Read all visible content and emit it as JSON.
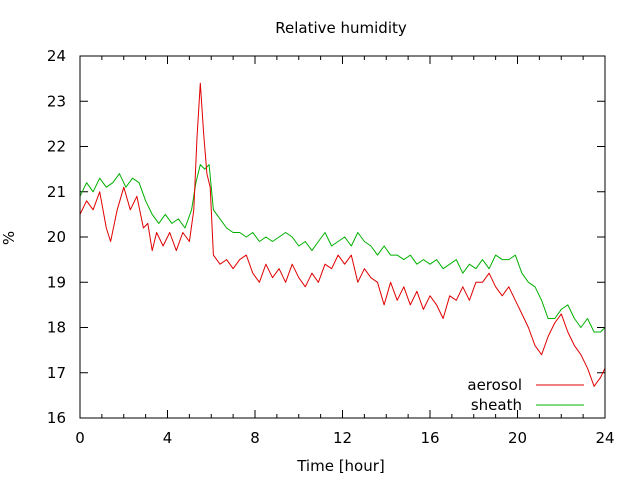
{
  "chart_data": {
    "type": "line",
    "title": "Relative humidity",
    "xlabel": "Time [hour]",
    "ylabel": "%",
    "xlim": [
      0,
      24
    ],
    "ylim": [
      16,
      24
    ],
    "xticks": [
      0,
      4,
      8,
      12,
      16,
      20,
      24
    ],
    "yticks": [
      16,
      17,
      18,
      19,
      20,
      21,
      22,
      23,
      24
    ],
    "grid": false,
    "legend_position": "bottom-right",
    "series": [
      {
        "name": "aerosol",
        "color": "#e00000",
        "points": [
          [
            0.0,
            20.5
          ],
          [
            0.3,
            20.8
          ],
          [
            0.6,
            20.6
          ],
          [
            0.9,
            21.0
          ],
          [
            1.2,
            20.2
          ],
          [
            1.4,
            19.9
          ],
          [
            1.7,
            20.6
          ],
          [
            2.0,
            21.1
          ],
          [
            2.3,
            20.6
          ],
          [
            2.6,
            20.9
          ],
          [
            2.9,
            20.2
          ],
          [
            3.1,
            20.3
          ],
          [
            3.3,
            19.7
          ],
          [
            3.5,
            20.1
          ],
          [
            3.8,
            19.8
          ],
          [
            4.1,
            20.1
          ],
          [
            4.4,
            19.7
          ],
          [
            4.7,
            20.1
          ],
          [
            5.0,
            19.9
          ],
          [
            5.2,
            20.6
          ],
          [
            5.35,
            22.2
          ],
          [
            5.5,
            23.4
          ],
          [
            5.65,
            22.3
          ],
          [
            5.8,
            21.4
          ],
          [
            5.95,
            21.1
          ],
          [
            6.1,
            19.6
          ],
          [
            6.4,
            19.4
          ],
          [
            6.7,
            19.5
          ],
          [
            7.0,
            19.3
          ],
          [
            7.3,
            19.5
          ],
          [
            7.6,
            19.6
          ],
          [
            7.9,
            19.2
          ],
          [
            8.2,
            19.0
          ],
          [
            8.5,
            19.4
          ],
          [
            8.8,
            19.1
          ],
          [
            9.1,
            19.3
          ],
          [
            9.4,
            19.0
          ],
          [
            9.7,
            19.4
          ],
          [
            10.0,
            19.1
          ],
          [
            10.3,
            18.9
          ],
          [
            10.6,
            19.2
          ],
          [
            10.9,
            19.0
          ],
          [
            11.2,
            19.4
          ],
          [
            11.5,
            19.3
          ],
          [
            11.8,
            19.6
          ],
          [
            12.1,
            19.4
          ],
          [
            12.4,
            19.6
          ],
          [
            12.7,
            19.0
          ],
          [
            13.0,
            19.3
          ],
          [
            13.3,
            19.1
          ],
          [
            13.6,
            19.0
          ],
          [
            13.9,
            18.5
          ],
          [
            14.2,
            19.0
          ],
          [
            14.5,
            18.6
          ],
          [
            14.8,
            18.9
          ],
          [
            15.1,
            18.5
          ],
          [
            15.4,
            18.8
          ],
          [
            15.7,
            18.4
          ],
          [
            16.0,
            18.7
          ],
          [
            16.3,
            18.5
          ],
          [
            16.6,
            18.2
          ],
          [
            16.9,
            18.7
          ],
          [
            17.2,
            18.6
          ],
          [
            17.5,
            18.9
          ],
          [
            17.8,
            18.6
          ],
          [
            18.1,
            19.0
          ],
          [
            18.4,
            19.0
          ],
          [
            18.7,
            19.2
          ],
          [
            19.0,
            18.9
          ],
          [
            19.3,
            18.7
          ],
          [
            19.6,
            18.9
          ],
          [
            19.9,
            18.6
          ],
          [
            20.2,
            18.3
          ],
          [
            20.5,
            18.0
          ],
          [
            20.8,
            17.6
          ],
          [
            21.1,
            17.4
          ],
          [
            21.4,
            17.8
          ],
          [
            21.7,
            18.1
          ],
          [
            22.0,
            18.3
          ],
          [
            22.3,
            17.9
          ],
          [
            22.6,
            17.6
          ],
          [
            22.9,
            17.4
          ],
          [
            23.2,
            17.1
          ],
          [
            23.5,
            16.7
          ],
          [
            23.8,
            16.9
          ],
          [
            24.0,
            17.1
          ]
        ]
      },
      {
        "name": "sheath",
        "color": "#00b000",
        "points": [
          [
            0.0,
            20.9
          ],
          [
            0.3,
            21.2
          ],
          [
            0.6,
            21.0
          ],
          [
            0.9,
            21.3
          ],
          [
            1.2,
            21.1
          ],
          [
            1.5,
            21.2
          ],
          [
            1.8,
            21.4
          ],
          [
            2.1,
            21.1
          ],
          [
            2.4,
            21.3
          ],
          [
            2.7,
            21.2
          ],
          [
            3.0,
            20.8
          ],
          [
            3.3,
            20.5
          ],
          [
            3.6,
            20.3
          ],
          [
            3.9,
            20.5
          ],
          [
            4.2,
            20.3
          ],
          [
            4.5,
            20.4
          ],
          [
            4.8,
            20.2
          ],
          [
            5.1,
            20.6
          ],
          [
            5.3,
            21.2
          ],
          [
            5.5,
            21.6
          ],
          [
            5.7,
            21.5
          ],
          [
            5.9,
            21.6
          ],
          [
            6.1,
            20.6
          ],
          [
            6.4,
            20.4
          ],
          [
            6.7,
            20.2
          ],
          [
            7.0,
            20.1
          ],
          [
            7.3,
            20.1
          ],
          [
            7.6,
            20.0
          ],
          [
            7.9,
            20.1
          ],
          [
            8.2,
            19.9
          ],
          [
            8.5,
            20.0
          ],
          [
            8.8,
            19.9
          ],
          [
            9.1,
            20.0
          ],
          [
            9.4,
            20.1
          ],
          [
            9.7,
            20.0
          ],
          [
            10.0,
            19.8
          ],
          [
            10.3,
            19.9
          ],
          [
            10.6,
            19.7
          ],
          [
            10.9,
            19.9
          ],
          [
            11.2,
            20.1
          ],
          [
            11.5,
            19.8
          ],
          [
            11.8,
            19.9
          ],
          [
            12.1,
            20.0
          ],
          [
            12.4,
            19.8
          ],
          [
            12.7,
            20.1
          ],
          [
            13.0,
            19.9
          ],
          [
            13.3,
            19.8
          ],
          [
            13.6,
            19.6
          ],
          [
            13.9,
            19.8
          ],
          [
            14.2,
            19.6
          ],
          [
            14.5,
            19.6
          ],
          [
            14.8,
            19.5
          ],
          [
            15.1,
            19.6
          ],
          [
            15.4,
            19.4
          ],
          [
            15.7,
            19.5
          ],
          [
            16.0,
            19.4
          ],
          [
            16.3,
            19.5
          ],
          [
            16.6,
            19.3
          ],
          [
            16.9,
            19.4
          ],
          [
            17.2,
            19.5
          ],
          [
            17.5,
            19.2
          ],
          [
            17.8,
            19.4
          ],
          [
            18.1,
            19.3
          ],
          [
            18.4,
            19.5
          ],
          [
            18.7,
            19.3
          ],
          [
            19.0,
            19.6
          ],
          [
            19.3,
            19.5
          ],
          [
            19.6,
            19.5
          ],
          [
            19.9,
            19.6
          ],
          [
            20.2,
            19.2
          ],
          [
            20.5,
            19.0
          ],
          [
            20.8,
            18.9
          ],
          [
            21.1,
            18.6
          ],
          [
            21.4,
            18.2
          ],
          [
            21.7,
            18.2
          ],
          [
            22.0,
            18.4
          ],
          [
            22.3,
            18.5
          ],
          [
            22.6,
            18.2
          ],
          [
            22.9,
            18.0
          ],
          [
            23.2,
            18.2
          ],
          [
            23.5,
            17.9
          ],
          [
            23.8,
            17.9
          ],
          [
            24.0,
            18.0
          ]
        ]
      }
    ]
  }
}
